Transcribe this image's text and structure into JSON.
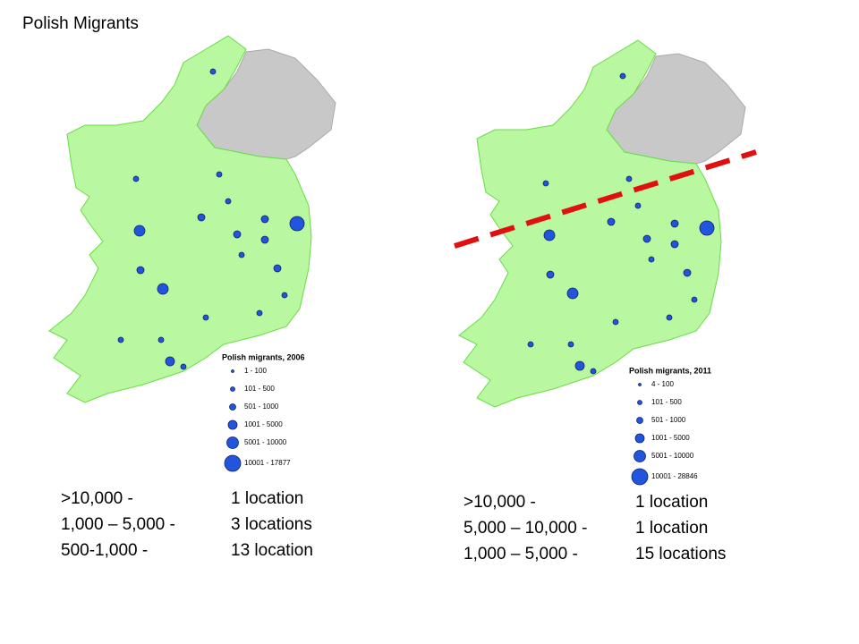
{
  "title": "Polish Migrants",
  "maps": [
    {
      "legend": {
        "title": "Polish migrants, 2006",
        "entries": [
          "1 - 100",
          "101 - 500",
          "501 - 1000",
          "1001 - 5000",
          "5001 - 10000",
          "10001 - 17877"
        ]
      },
      "summary": [
        [
          ">10,000 -",
          "1 location"
        ],
        [
          "1,000 – 5,000 -",
          "3 locations"
        ],
        [
          "500-1,000 -",
          "13 location"
        ]
      ]
    },
    {
      "legend": {
        "title": "Polish migrants, 2011",
        "entries": [
          "4 - 100",
          "101 - 500",
          "501 - 1000",
          "1001 - 5000",
          "5001 - 10000",
          "10001 - 28846"
        ]
      },
      "summary": [
        [
          ">10,000 -",
          "1 location"
        ],
        [
          "5,000 – 10,000 -",
          "1 location"
        ],
        [
          "1,000 – 5,000 -",
          "15 locations"
        ]
      ]
    }
  ]
}
